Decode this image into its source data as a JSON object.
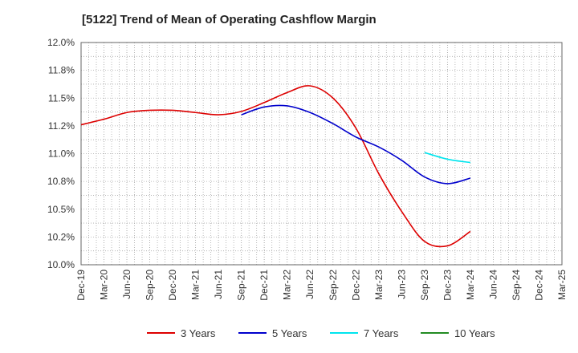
{
  "chart_data": {
    "type": "line",
    "title": "[5122]  Trend of Mean of Operating Cashflow Margin",
    "xlabel": "",
    "ylabel": "",
    "x_ticks": [
      "Dec-19",
      "Mar-20",
      "Jun-20",
      "Sep-20",
      "Dec-20",
      "Mar-21",
      "Jun-21",
      "Sep-21",
      "Dec-21",
      "Mar-22",
      "Jun-22",
      "Sep-22",
      "Dec-22",
      "Mar-23",
      "Jun-23",
      "Sep-23",
      "Dec-23",
      "Mar-24",
      "Jun-24",
      "Sep-24",
      "Dec-24",
      "Mar-25"
    ],
    "y_ticks": [
      "10.0%",
      "10.2%",
      "10.5%",
      "10.8%",
      "11.0%",
      "11.2%",
      "11.5%",
      "11.8%",
      "12.0%"
    ],
    "ylim": [
      10.0,
      12.0
    ],
    "y_tick_values": [
      10.0,
      10.25,
      10.5,
      10.75,
      11.0,
      11.25,
      11.5,
      11.75,
      12.0
    ],
    "grid": true,
    "legend_position": "bottom",
    "series": [
      {
        "name": "3 Years",
        "color": "#dd0000",
        "x": [
          "Dec-19",
          "Mar-20",
          "Jun-20",
          "Sep-20",
          "Dec-20",
          "Mar-21",
          "Jun-21",
          "Sep-21",
          "Dec-21",
          "Mar-22",
          "Jun-22",
          "Sep-22",
          "Dec-22",
          "Mar-23",
          "Jun-23",
          "Sep-23",
          "Dec-23",
          "Mar-24"
        ],
        "values": [
          11.26,
          11.31,
          11.37,
          11.39,
          11.39,
          11.37,
          11.35,
          11.38,
          11.46,
          11.55,
          11.61,
          11.5,
          11.23,
          10.82,
          10.48,
          10.21,
          10.17,
          10.3
        ]
      },
      {
        "name": "5 Years",
        "color": "#0000cc",
        "x": [
          "Sep-21",
          "Dec-21",
          "Mar-22",
          "Jun-22",
          "Sep-22",
          "Dec-22",
          "Mar-23",
          "Jun-23",
          "Sep-23",
          "Dec-23",
          "Mar-24"
        ],
        "values": [
          11.35,
          11.42,
          11.43,
          11.37,
          11.27,
          11.15,
          11.06,
          10.94,
          10.79,
          10.73,
          10.78
        ]
      },
      {
        "name": "7 Years",
        "color": "#00e5ee",
        "x": [
          "Sep-23",
          "Dec-23",
          "Mar-24"
        ],
        "values": [
          11.01,
          10.95,
          10.92
        ]
      },
      {
        "name": "10 Years",
        "color": "#228b22",
        "x": [],
        "values": []
      }
    ]
  }
}
